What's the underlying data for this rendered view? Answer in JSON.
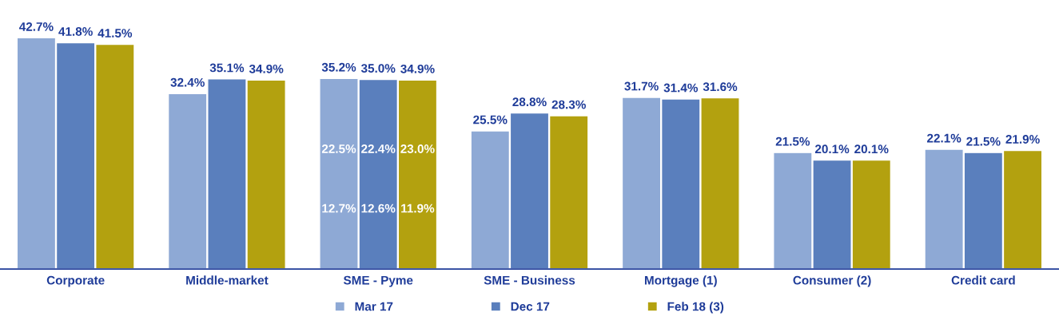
{
  "chart_data": {
    "type": "bar",
    "categories": [
      "Corporate",
      "Middle-market",
      "SME - Pyme",
      "SME - Business",
      "Mortgage (1)",
      "Consumer (2)",
      "Credit card"
    ],
    "series": [
      {
        "name": "Mar 17",
        "color": "#8ea9d5",
        "values": [
          42.7,
          32.4,
          35.2,
          25.5,
          31.7,
          21.5,
          22.1
        ],
        "value_labels": [
          "42.7%",
          "32.4%",
          "35.2%",
          "25.5%",
          "31.7%",
          "21.5%",
          "22.1%"
        ]
      },
      {
        "name": "Dec 17",
        "color": "#5a7fbd",
        "values": [
          41.8,
          35.1,
          35.0,
          28.8,
          31.4,
          20.1,
          21.5
        ],
        "value_labels": [
          "41.8%",
          "35.1%",
          "35.0%",
          "28.8%",
          "31.4%",
          "20.1%",
          "21.5%"
        ]
      },
      {
        "name": "Feb 18 (3)",
        "color": "#b3a10f",
        "values": [
          41.5,
          34.9,
          34.9,
          28.3,
          31.6,
          20.1,
          21.9
        ],
        "value_labels": [
          "41.5%",
          "34.9%",
          "34.9%",
          "28.3%",
          "31.6%",
          "20.1%",
          "21.9%"
        ]
      }
    ],
    "annotations": [
      "22.5%",
      "22.4%",
      "23.0%",
      "12.7%",
      "12.6%",
      "11.9%"
    ],
    "tick_labels": "x",
    "legend": "bottom"
  }
}
